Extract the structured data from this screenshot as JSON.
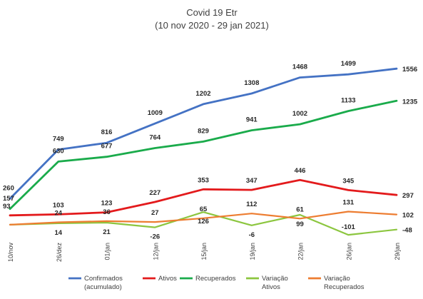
{
  "chart_data": {
    "type": "line",
    "title": "Covid 19 Etr",
    "subtitle": "(10 nov 2020 - 29 jan 2021)",
    "categories": [
      "10/nov",
      "26/dez",
      "01/jan",
      "12/jan",
      "15/jan",
      "19/jan",
      "22/jan",
      "26/jan",
      "29/jan"
    ],
    "grid": false,
    "legend_position": "bottom",
    "ylim": [
      -150,
      1600
    ],
    "series": [
      {
        "name": "Confirmados (acumulado)",
        "legend_lines": [
          "Confirmados",
          "(acumulado)"
        ],
        "color": "#4472C4",
        "values": [
          260,
          749,
          816,
          1009,
          1202,
          1308,
          1468,
          1499,
          1556
        ]
      },
      {
        "name": "Ativos",
        "legend_lines": [
          "Ativos"
        ],
        "color": "#E31A1C",
        "values": [
          93,
          103,
          123,
          227,
          353,
          347,
          446,
          345,
          297
        ]
      },
      {
        "name": "Recuperados",
        "legend_lines": [
          "Recuperados"
        ],
        "color": "#1AAB4B",
        "values": [
          157,
          630,
          677,
          764,
          829,
          941,
          1002,
          1133,
          1235
        ]
      },
      {
        "name": "Variação Ativos",
        "legend_lines": [
          "Variação",
          "Ativos"
        ],
        "color": "#8CC63F",
        "values": [
          0,
          14,
          21,
          -26,
          126,
          -6,
          99,
          -101,
          -48
        ]
      },
      {
        "name": "Variação Recuperados",
        "legend_lines": [
          "Variação",
          "Recuperados"
        ],
        "color": "#ED7D31",
        "values": [
          0,
          24,
          36,
          27,
          65,
          112,
          61,
          131,
          102
        ]
      }
    ]
  }
}
